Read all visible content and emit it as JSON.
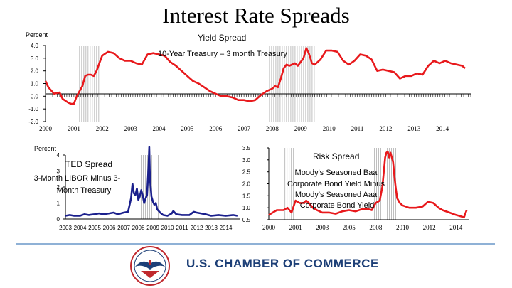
{
  "page": {
    "title": "Interest Rate Spreads",
    "organization": "U.S. CHAMBER OF COMMERCE"
  },
  "colors": {
    "yield_line": "#e8191c",
    "ted_line": "#1a1f8c",
    "risk_line": "#e8191c",
    "recession_shade": "#bfbfbf",
    "footer_rule": "#8fb1d6",
    "chamber_blue": "#1d3f77"
  },
  "chart_data": [
    {
      "type": "line",
      "title": "Yield Spread",
      "annotation": "10-Year Treasury – 3 month Treasury",
      "ylabel": "Percent",
      "ylim": [
        -2.0,
        4.0
      ],
      "xlim": [
        2000,
        2015
      ],
      "y_ticks": [
        "4.0",
        "3.0",
        "2.0",
        "1.0",
        "0.0",
        "-1.0",
        "-2.0"
      ],
      "x_ticks": [
        "2000",
        "2001",
        "2002",
        "2003",
        "2004",
        "2005",
        "2006",
        "2007",
        "2008",
        "2009",
        "2010",
        "2011",
        "2012",
        "2013",
        "2014"
      ],
      "recessions": [
        [
          2001.2,
          2001.9
        ],
        [
          2007.9,
          2009.5
        ]
      ],
      "series": [
        {
          "name": "10-Year Treasury - 3 month Treasury",
          "x": [
            2000.0,
            2000.1,
            2000.3,
            2000.5,
            2000.6,
            2000.8,
            2000.9,
            2001.0,
            2001.1,
            2001.3,
            2001.4,
            2001.5,
            2001.6,
            2001.7,
            2001.8,
            2001.9,
            2002.0,
            2002.2,
            2002.4,
            2002.6,
            2002.8,
            2003.0,
            2003.2,
            2003.4,
            2003.6,
            2003.8,
            2004.0,
            2004.2,
            2004.4,
            2004.6,
            2004.8,
            2005.0,
            2005.2,
            2005.4,
            2005.6,
            2005.8,
            2006.0,
            2006.2,
            2006.4,
            2006.6,
            2006.8,
            2007.0,
            2007.2,
            2007.4,
            2007.6,
            2007.8,
            2008.0,
            2008.1,
            2008.2,
            2008.3,
            2008.4,
            2008.5,
            2008.6,
            2008.8,
            2008.9,
            2009.0,
            2009.1,
            2009.2,
            2009.3,
            2009.4,
            2009.5,
            2009.7,
            2009.9,
            2010.1,
            2010.3,
            2010.5,
            2010.7,
            2010.9,
            2011.1,
            2011.3,
            2011.5,
            2011.7,
            2011.9,
            2012.1,
            2012.3,
            2012.5,
            2012.7,
            2012.9,
            2013.1,
            2013.3,
            2013.5,
            2013.7,
            2013.9,
            2014.1,
            2014.3,
            2014.5,
            2014.7,
            2014.8
          ],
          "values": [
            1.2,
            0.7,
            0.2,
            0.3,
            -0.2,
            -0.5,
            -0.6,
            -0.6,
            0.0,
            0.8,
            1.6,
            1.7,
            1.7,
            1.6,
            2.0,
            2.6,
            3.2,
            3.5,
            3.4,
            3.0,
            2.8,
            2.8,
            2.6,
            2.5,
            3.3,
            3.4,
            3.3,
            3.2,
            2.7,
            2.4,
            2.0,
            1.6,
            1.2,
            1.0,
            0.7,
            0.4,
            0.2,
            0.0,
            0.0,
            -0.1,
            -0.3,
            -0.3,
            -0.4,
            -0.3,
            0.1,
            0.4,
            0.6,
            0.8,
            0.7,
            1.4,
            2.2,
            2.5,
            2.4,
            2.6,
            2.4,
            2.7,
            3.0,
            3.8,
            3.3,
            2.6,
            2.5,
            2.9,
            3.6,
            3.6,
            3.5,
            2.8,
            2.5,
            2.8,
            3.3,
            3.2,
            2.9,
            2.0,
            2.1,
            2.0,
            1.9,
            1.4,
            1.6,
            1.6,
            1.8,
            1.7,
            2.4,
            2.8,
            2.6,
            2.8,
            2.6,
            2.5,
            2.4,
            2.2
          ]
        }
      ]
    },
    {
      "type": "line",
      "title": "TED Spread",
      "annotation": "3-Month LIBOR Minus 3-Month Treasury",
      "ylabel": "Percent",
      "ylim": [
        0,
        4
      ],
      "xlim": [
        2003,
        2015
      ],
      "y_ticks": [
        "4",
        "3",
        "2",
        "1",
        "0"
      ],
      "x_ticks": [
        "2003",
        "2004",
        "2005",
        "2006",
        "2007",
        "2008",
        "2009",
        "2010",
        "2011",
        "2012",
        "2013",
        "2014"
      ],
      "recessions": [
        [
          2007.9,
          2009.5
        ]
      ],
      "series": [
        {
          "name": "TED Spread",
          "x": [
            2003.0,
            2003.3,
            2003.6,
            2004.0,
            2004.3,
            2004.6,
            2005.0,
            2005.3,
            2005.6,
            2006.0,
            2006.3,
            2006.6,
            2007.0,
            2007.3,
            2007.5,
            2007.6,
            2007.7,
            2007.8,
            2007.9,
            2008.0,
            2008.1,
            2008.2,
            2008.3,
            2008.4,
            2008.5,
            2008.6,
            2008.7,
            2008.75,
            2008.8,
            2008.85,
            2008.9,
            2009.0,
            2009.1,
            2009.2,
            2009.3,
            2009.5,
            2009.7,
            2010.0,
            2010.3,
            2010.4,
            2010.6,
            2011.0,
            2011.5,
            2011.8,
            2012.0,
            2012.3,
            2012.6,
            2013.0,
            2013.5,
            2014.0,
            2014.5,
            2014.8
          ],
          "values": [
            0.2,
            0.25,
            0.2,
            0.2,
            0.3,
            0.25,
            0.3,
            0.35,
            0.3,
            0.35,
            0.4,
            0.3,
            0.4,
            0.45,
            1.3,
            2.2,
            1.6,
            1.5,
            1.9,
            1.2,
            1.4,
            1.8,
            1.5,
            1.0,
            1.3,
            1.5,
            3.3,
            4.5,
            2.5,
            2.0,
            1.4,
            1.1,
            0.9,
            1.0,
            0.6,
            0.4,
            0.25,
            0.2,
            0.35,
            0.5,
            0.3,
            0.25,
            0.25,
            0.45,
            0.4,
            0.35,
            0.3,
            0.2,
            0.25,
            0.2,
            0.25,
            0.2
          ]
        }
      ]
    },
    {
      "type": "line",
      "title": "Risk Spread",
      "annotation": "Moody's Seasoned Baa Corporate Bond Yield Minus Moody's Seasoned Aaa Corporate Bond Yield",
      "ylabel": "",
      "ylim": [
        0.5,
        3.5
      ],
      "xlim": [
        2000,
        2015
      ],
      "y_ticks": [
        "3.5",
        "3.0",
        "2.5",
        "2.0",
        "1.5",
        "1.0",
        "0.5"
      ],
      "x_ticks": [
        "2000",
        "2001",
        "2003",
        "2005",
        "2008",
        "2010",
        "2012",
        "2014"
      ],
      "recessions": [
        [
          2001.2,
          2001.9
        ],
        [
          2007.9,
          2009.5
        ]
      ],
      "series": [
        {
          "name": "Baa - Aaa",
          "x": [
            2000.0,
            2000.3,
            2000.6,
            2000.9,
            2001.1,
            2001.4,
            2001.7,
            2002.0,
            2002.3,
            2002.6,
            2002.8,
            2003.0,
            2003.3,
            2003.6,
            2004.0,
            2004.5,
            2005.0,
            2005.5,
            2006.0,
            2006.5,
            2007.0,
            2007.4,
            2007.7,
            2008.0,
            2008.3,
            2008.5,
            2008.7,
            2008.8,
            2008.9,
            2009.0,
            2009.1,
            2009.2,
            2009.3,
            2009.4,
            2009.5,
            2009.6,
            2009.8,
            2010.0,
            2010.5,
            2011.0,
            2011.5,
            2011.9,
            2012.3,
            2012.7,
            2013.0,
            2013.5,
            2014.0,
            2014.3,
            2014.6,
            2014.8
          ],
          "values": [
            0.7,
            0.8,
            0.9,
            0.9,
            0.9,
            1.0,
            0.8,
            1.3,
            1.2,
            1.2,
            1.3,
            1.2,
            1.0,
            0.9,
            0.8,
            0.8,
            0.75,
            0.85,
            0.9,
            0.85,
            0.95,
            0.95,
            0.9,
            1.2,
            1.3,
            1.9,
            3.1,
            3.3,
            3.35,
            3.1,
            3.3,
            3.1,
            2.9,
            2.3,
            1.8,
            1.4,
            1.2,
            1.1,
            1.0,
            1.0,
            1.05,
            1.25,
            1.2,
            1.0,
            0.9,
            0.8,
            0.7,
            0.65,
            0.6,
            0.9
          ]
        }
      ]
    }
  ]
}
